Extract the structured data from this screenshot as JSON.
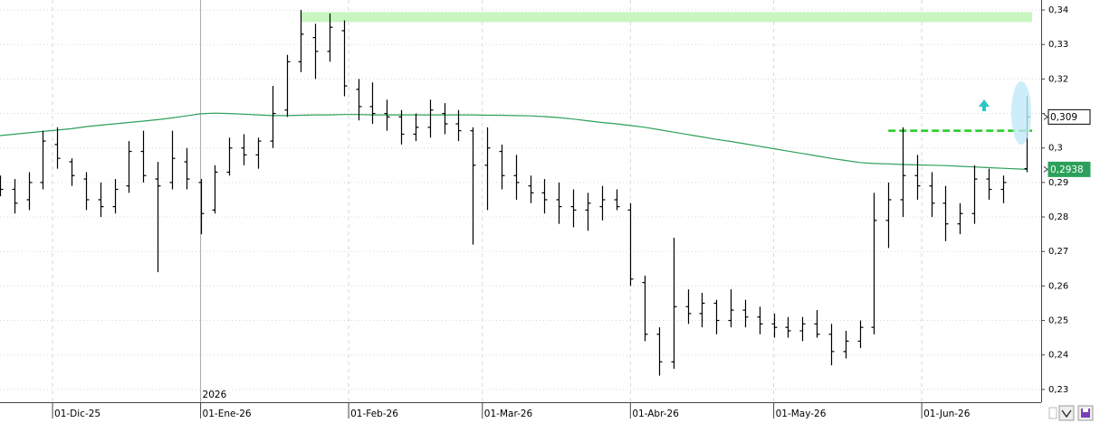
{
  "chart_data": {
    "type": "ohlc",
    "color": "#000000",
    "x": [
      "2025-11-20",
      "2025-11-23",
      "2025-11-26",
      "2025-11-29",
      "2025-12-02",
      "2025-12-05",
      "2025-12-08",
      "2025-12-11",
      "2025-12-14",
      "2025-12-17",
      "2025-12-20",
      "2025-12-23",
      "2025-12-26",
      "2025-12-29",
      "2026-01-01",
      "2026-01-04",
      "2026-01-07",
      "2026-01-10",
      "2026-01-13",
      "2026-01-16",
      "2026-01-19",
      "2026-01-22",
      "2026-01-25",
      "2026-01-28",
      "2026-01-31",
      "2026-02-03",
      "2026-02-06",
      "2026-02-09",
      "2026-02-12",
      "2026-02-15",
      "2026-02-18",
      "2026-02-21",
      "2026-02-24",
      "2026-02-27",
      "2026-03-02",
      "2026-03-05",
      "2026-03-08",
      "2026-03-11",
      "2026-03-14",
      "2026-03-17",
      "2026-03-20",
      "2026-03-23",
      "2026-03-26",
      "2026-03-29",
      "2026-04-01",
      "2026-04-04",
      "2026-04-07",
      "2026-04-10",
      "2026-04-13",
      "2026-04-16",
      "2026-04-19",
      "2026-04-22",
      "2026-04-25",
      "2026-04-28",
      "2026-05-01",
      "2026-05-04",
      "2026-05-07",
      "2026-05-10",
      "2026-05-13",
      "2026-05-16",
      "2026-05-19",
      "2026-05-22",
      "2026-05-25",
      "2026-05-28",
      "2026-05-31",
      "2026-06-03",
      "2026-06-06",
      "2026-06-09",
      "2026-06-12",
      "2026-06-15",
      "2026-06-18",
      "2026-06-23"
    ],
    "open": [
      0.29,
      0.288,
      0.285,
      0.29,
      0.301,
      0.296,
      0.291,
      0.285,
      0.283,
      0.289,
      0.299,
      0.291,
      0.29,
      0.296,
      0.29,
      0.282,
      0.293,
      0.3,
      0.298,
      0.302,
      0.311,
      0.325,
      0.332,
      0.328,
      0.334,
      0.317,
      0.312,
      0.31,
      0.309,
      0.304,
      0.306,
      0.31,
      0.307,
      0.305,
      0.295,
      0.299,
      0.292,
      0.289,
      0.287,
      0.285,
      0.283,
      0.282,
      0.283,
      0.285,
      0.282,
      0.261,
      0.246,
      0.238,
      0.254,
      0.252,
      0.255,
      0.25,
      0.253,
      0.251,
      0.249,
      0.248,
      0.247,
      0.249,
      0.246,
      0.241,
      0.244,
      0.248,
      0.279,
      0.285,
      0.292,
      0.289,
      0.284,
      0.278,
      0.281,
      0.291,
      0.288,
      0.294
    ],
    "high": [
      0.292,
      0.291,
      0.293,
      0.305,
      0.306,
      0.297,
      0.293,
      0.29,
      0.291,
      0.302,
      0.305,
      0.296,
      0.305,
      0.3,
      0.291,
      0.295,
      0.303,
      0.304,
      0.303,
      0.318,
      0.327,
      0.34,
      0.336,
      0.339,
      0.337,
      0.32,
      0.319,
      0.314,
      0.311,
      0.31,
      0.314,
      0.313,
      0.311,
      0.306,
      0.306,
      0.301,
      0.298,
      0.292,
      0.291,
      0.29,
      0.288,
      0.287,
      0.289,
      0.288,
      0.284,
      0.263,
      0.248,
      0.274,
      0.259,
      0.258,
      0.256,
      0.259,
      0.256,
      0.254,
      0.252,
      0.251,
      0.251,
      0.253,
      0.249,
      0.247,
      0.25,
      0.287,
      0.29,
      0.306,
      0.298,
      0.293,
      0.289,
      0.284,
      0.295,
      0.294,
      0.292,
      0.315
    ],
    "low": [
      0.286,
      0.281,
      0.282,
      0.288,
      0.294,
      0.289,
      0.282,
      0.28,
      0.281,
      0.287,
      0.29,
      0.264,
      0.288,
      0.288,
      0.275,
      0.281,
      0.292,
      0.295,
      0.294,
      0.3,
      0.309,
      0.322,
      0.32,
      0.325,
      0.315,
      0.308,
      0.307,
      0.305,
      0.301,
      0.302,
      0.303,
      0.304,
      0.302,
      0.272,
      0.282,
      0.288,
      0.285,
      0.284,
      0.281,
      0.278,
      0.277,
      0.276,
      0.279,
      0.282,
      0.26,
      0.244,
      0.234,
      0.236,
      0.249,
      0.248,
      0.246,
      0.248,
      0.248,
      0.246,
      0.245,
      0.245,
      0.244,
      0.245,
      0.237,
      0.239,
      0.242,
      0.246,
      0.271,
      0.28,
      0.285,
      0.28,
      0.273,
      0.275,
      0.278,
      0.285,
      0.284,
      0.293
    ],
    "close": [
      0.288,
      0.284,
      0.29,
      0.302,
      0.297,
      0.292,
      0.285,
      0.283,
      0.288,
      0.299,
      0.292,
      0.289,
      0.297,
      0.291,
      0.281,
      0.293,
      0.3,
      0.298,
      0.302,
      0.31,
      0.325,
      0.333,
      0.328,
      0.335,
      0.318,
      0.312,
      0.31,
      0.309,
      0.304,
      0.306,
      0.311,
      0.307,
      0.305,
      0.295,
      0.3,
      0.292,
      0.29,
      0.287,
      0.285,
      0.283,
      0.282,
      0.284,
      0.285,
      0.283,
      0.262,
      0.246,
      0.238,
      0.254,
      0.252,
      0.255,
      0.25,
      0.253,
      0.251,
      0.249,
      0.248,
      0.247,
      0.249,
      0.246,
      0.241,
      0.244,
      0.248,
      0.279,
      0.285,
      0.292,
      0.289,
      0.284,
      0.278,
      0.281,
      0.291,
      0.288,
      0.29,
      0.309
    ],
    "moving_average": {
      "color": "#2ca05a",
      "values": [
        0.3036,
        0.304,
        0.3044,
        0.3048,
        0.3052,
        0.3056,
        0.3062,
        0.3066,
        0.307,
        0.3074,
        0.3078,
        0.3082,
        0.3087,
        0.3093,
        0.3099,
        0.3101,
        0.31,
        0.3098,
        0.3096,
        0.3094,
        0.3094,
        0.3095,
        0.3096,
        0.3096,
        0.3097,
        0.3097,
        0.3096,
        0.3096,
        0.3096,
        0.3096,
        0.3096,
        0.3096,
        0.3096,
        0.3096,
        0.3095,
        0.3095,
        0.3094,
        0.3093,
        0.3091,
        0.3088,
        0.3084,
        0.3079,
        0.3074,
        0.307,
        0.3065,
        0.306,
        0.3053,
        0.3046,
        0.3039,
        0.3032,
        0.3025,
        0.3019,
        0.3012,
        0.3005,
        0.2998,
        0.2991,
        0.2984,
        0.2977,
        0.297,
        0.2964,
        0.2958,
        0.2955,
        0.2954,
        0.2952,
        0.2951,
        0.295,
        0.2949,
        0.2947,
        0.2945,
        0.2943,
        0.2941,
        0.2938
      ]
    },
    "resistance_zone": {
      "from": "2026-01-22",
      "ymin": 0.3365,
      "ymax": 0.3394,
      "color": "#c8f5c0"
    },
    "level_line": {
      "from": "2026-05-25",
      "value": 0.305,
      "color": "#22cc22"
    },
    "price_tags": [
      {
        "value": 0.309,
        "label": "0,309",
        "color": "#ffffff"
      },
      {
        "value": 0.2938,
        "label": "0,2938",
        "color": "#2ca05a"
      }
    ],
    "year_marker": {
      "x": "2026-01-01",
      "label": "2026"
    },
    "xlim": [
      "2025-11-20",
      "2026-06-26"
    ],
    "xticks": [
      {
        "value": "2025-12-01",
        "label": "01-Dic-25"
      },
      {
        "value": "2026-01-01",
        "label": "01-Ene-26"
      },
      {
        "value": "2026-02-01",
        "label": "01-Feb-26"
      },
      {
        "value": "2026-03-01",
        "label": "01-Mar-26"
      },
      {
        "value": "2026-04-01",
        "label": "01-Abr-26"
      },
      {
        "value": "2026-05-01",
        "label": "01-May-26"
      },
      {
        "value": "2026-06-01",
        "label": "01-Jun-26"
      }
    ],
    "ylim": [
      0.2263,
      0.3429
    ],
    "yticks": [
      {
        "value": 0.23,
        "label": "0,23"
      },
      {
        "value": 0.24,
        "label": "0,24"
      },
      {
        "value": 0.25,
        "label": "0,25"
      },
      {
        "value": 0.26,
        "label": "0,26"
      },
      {
        "value": 0.27,
        "label": "0,27"
      },
      {
        "value": 0.28,
        "label": "0,28"
      },
      {
        "value": 0.29,
        "label": "0,29"
      },
      {
        "value": 0.3,
        "label": "0,3"
      },
      {
        "value": 0.31,
        "label": "0,31"
      },
      {
        "value": 0.32,
        "label": "0,32"
      },
      {
        "value": 0.33,
        "label": "0,33"
      },
      {
        "value": 0.34,
        "label": "0,34"
      }
    ],
    "grid": true
  }
}
